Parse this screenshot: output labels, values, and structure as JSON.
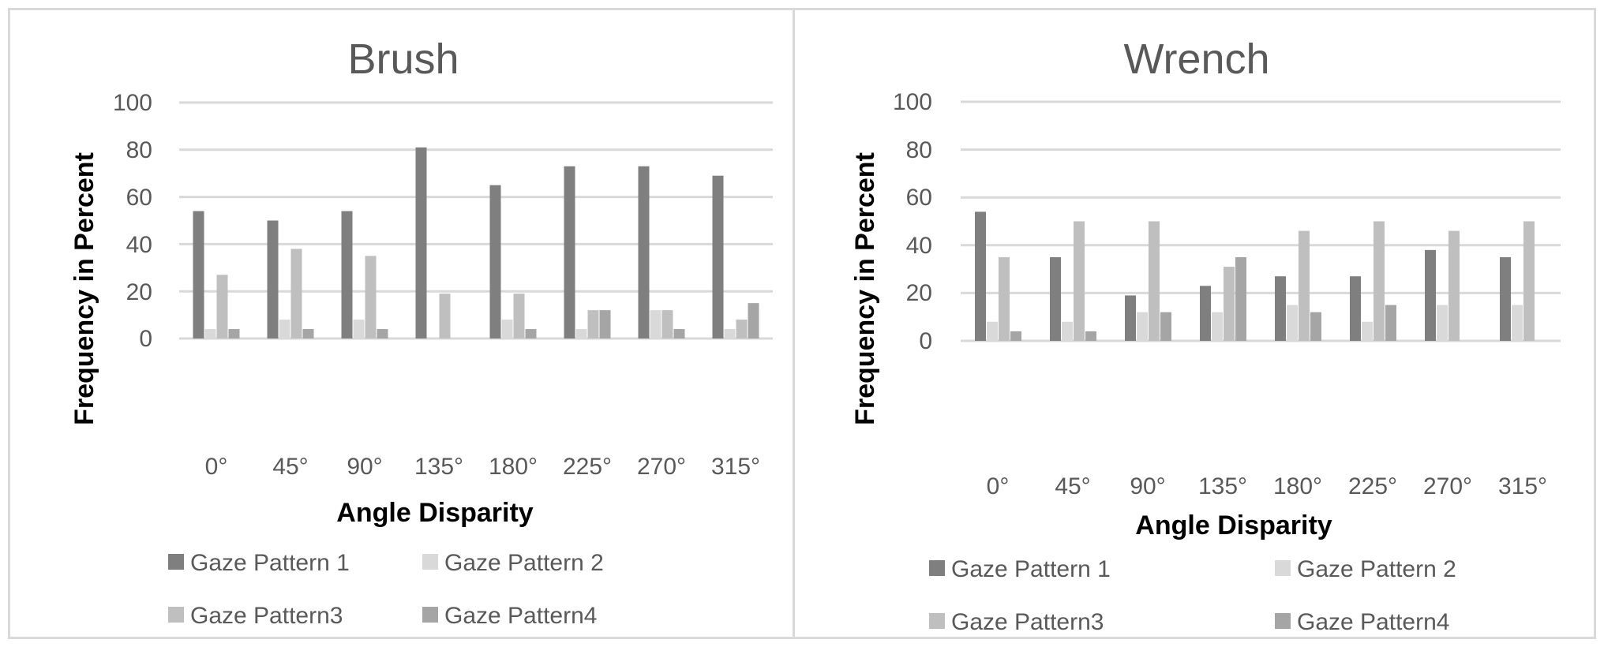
{
  "colors": {
    "pattern1": "#7f7f7f",
    "pattern2": "#d9d9d9",
    "pattern3": "#bfbfbf",
    "pattern4": "#a5a5a5"
  },
  "chart_data": [
    {
      "type": "bar",
      "title": "Brush",
      "xlabel": "Angle Disparity",
      "ylabel": "Frequency in Percent",
      "ylim": [
        0,
        100
      ],
      "yticks": [
        "0",
        "20",
        "40",
        "60",
        "80",
        "100"
      ],
      "categories": [
        "0°",
        "45°",
        "90°",
        "135°",
        "180°",
        "225°",
        "270°",
        "315°"
      ],
      "legend_position": "bottom",
      "series": [
        {
          "name": "Gaze Pattern 1",
          "values": [
            54,
            50,
            54,
            81,
            65,
            73,
            73,
            69
          ]
        },
        {
          "name": "Gaze Pattern 2",
          "values": [
            4,
            8,
            8,
            0,
            8,
            4,
            12,
            4
          ]
        },
        {
          "name": "Gaze Pattern3",
          "values": [
            27,
            38,
            35,
            19,
            19,
            12,
            12,
            8
          ]
        },
        {
          "name": "Gaze Pattern4",
          "values": [
            4,
            4,
            4,
            0,
            4,
            12,
            4,
            15
          ]
        }
      ]
    },
    {
      "type": "bar",
      "title": "Wrench",
      "xlabel": "Angle Disparity",
      "ylabel": "Frequency in Percent",
      "ylim": [
        0,
        100
      ],
      "yticks": [
        "0",
        "20",
        "40",
        "60",
        "80",
        "100"
      ],
      "categories": [
        "0°",
        "45°",
        "90°",
        "135°",
        "180°",
        "225°",
        "270°",
        "315°"
      ],
      "legend_position": "bottom",
      "series": [
        {
          "name": "Gaze Pattern 1",
          "values": [
            54,
            35,
            19,
            23,
            27,
            27,
            38,
            35
          ]
        },
        {
          "name": "Gaze Pattern 2",
          "values": [
            8,
            8,
            12,
            12,
            15,
            8,
            15,
            15
          ]
        },
        {
          "name": "Gaze Pattern3",
          "values": [
            35,
            50,
            50,
            31,
            46,
            50,
            46,
            50
          ]
        },
        {
          "name": "Gaze Pattern4",
          "values": [
            4,
            4,
            12,
            35,
            12,
            15,
            0,
            0
          ]
        }
      ]
    }
  ]
}
